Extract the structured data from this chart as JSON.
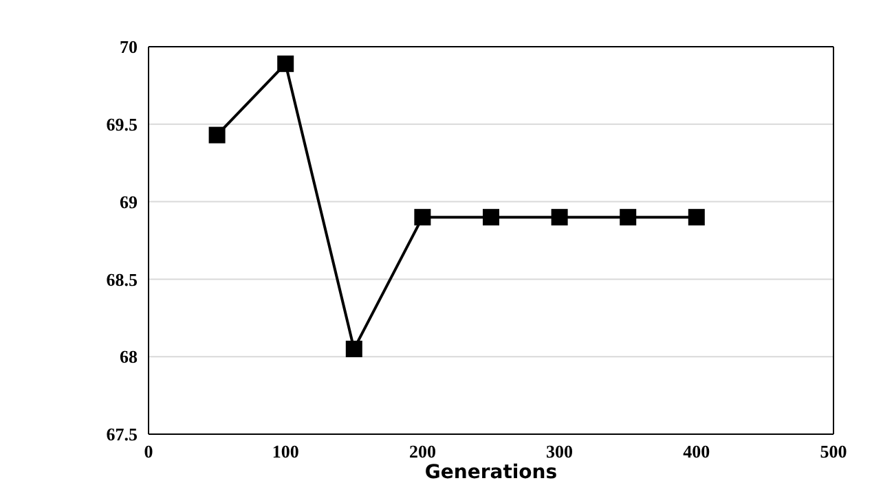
{
  "chart_data": {
    "type": "line",
    "xlabel": "Generations",
    "x": [
      50,
      100,
      150,
      200,
      250,
      300,
      350,
      400
    ],
    "series": [
      {
        "color": "#000000",
        "values": [
          69.43,
          69.89,
          68.05,
          68.9,
          68.9,
          68.9,
          68.9,
          68.9
        ]
      }
    ],
    "xlim": [
      0,
      500
    ],
    "xticks": [
      0,
      100,
      200,
      300,
      400,
      500
    ],
    "ylim": [
      67.5,
      70
    ],
    "yticks": [
      67.5,
      68,
      68.5,
      69,
      69.5,
      70
    ],
    "grid": "y",
    "marker": "square",
    "line_style": "solid",
    "legend": false
  }
}
